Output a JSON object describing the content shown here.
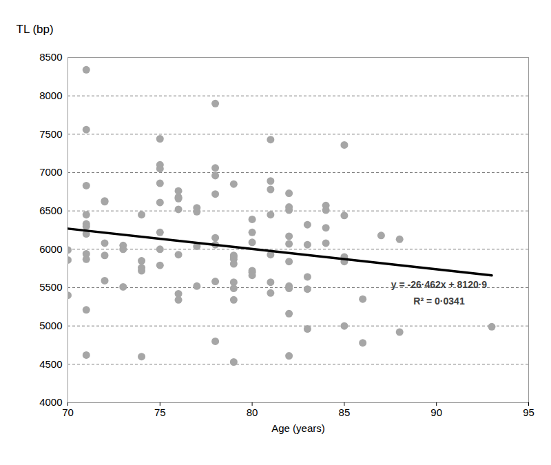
{
  "chart_data": {
    "type": "scatter",
    "y_label": "TL (bp)",
    "x_label": "Age (years)",
    "xlim": [
      70,
      95
    ],
    "xticks": [
      70,
      75,
      80,
      85,
      90,
      95
    ],
    "ylim": [
      4000,
      8500
    ],
    "yticks": [
      4000,
      4500,
      5000,
      5500,
      6000,
      6500,
      7000,
      7500,
      8000,
      8500
    ],
    "grid": true,
    "annotations": [
      "y = -26·462x + 8120·9",
      "R² = 0·0341"
    ],
    "series": [
      {
        "type": "scatter",
        "color": "#a6a6a6",
        "marker": "circle",
        "x": [
          70,
          70,
          70,
          71,
          71,
          71,
          71,
          71,
          71,
          71,
          71,
          71,
          71,
          71,
          72,
          72,
          72,
          72,
          72,
          73,
          73,
          73,
          74,
          74,
          74,
          74,
          74,
          75,
          75,
          75,
          75,
          75,
          75,
          75,
          75,
          76,
          76,
          76,
          76,
          76,
          76,
          76,
          77,
          77,
          77,
          77,
          78,
          78,
          78,
          78,
          78,
          78,
          78,
          78,
          79,
          79,
          79,
          79,
          79,
          79,
          79,
          79,
          79,
          80,
          80,
          80,
          80,
          80,
          80,
          81,
          81,
          81,
          81,
          81,
          81,
          81,
          82,
          82,
          82,
          82,
          82,
          82,
          82,
          82,
          82,
          82,
          83,
          83,
          83,
          83,
          83,
          84,
          84,
          84,
          84,
          85,
          85,
          85,
          85,
          85,
          86,
          86,
          87,
          88,
          88,
          93
        ],
        "values": [
          5990,
          5860,
          5400,
          8340,
          7560,
          6830,
          6450,
          6330,
          6300,
          6200,
          5940,
          5870,
          5210,
          4620,
          6630,
          6620,
          6080,
          5920,
          5590,
          6050,
          6000,
          5510,
          6450,
          5850,
          5760,
          5720,
          4600,
          7440,
          7100,
          7050,
          6860,
          6610,
          6220,
          6000,
          5790,
          6760,
          6680,
          6660,
          6520,
          5930,
          5420,
          5340,
          6540,
          6490,
          6040,
          5520,
          7900,
          7060,
          6960,
          6720,
          6150,
          6060,
          5580,
          4800,
          6850,
          5920,
          5900,
          5870,
          5810,
          5570,
          5490,
          5340,
          4530,
          6390,
          6220,
          6090,
          5720,
          5700,
          5660,
          7430,
          6890,
          6780,
          6450,
          5930,
          5570,
          5430,
          6730,
          6550,
          6510,
          6170,
          6070,
          5840,
          5520,
          5490,
          5160,
          4610,
          6320,
          6060,
          5640,
          5480,
          4960,
          6570,
          6510,
          6280,
          6080,
          7360,
          6440,
          5900,
          5840,
          5000,
          5350,
          4780,
          6180,
          6130,
          4920,
          4990
        ]
      },
      {
        "type": "line",
        "color": "#000000",
        "line_style": "solid",
        "x": [
          70,
          93
        ],
        "values": [
          6269,
          5660
        ]
      }
    ]
  }
}
